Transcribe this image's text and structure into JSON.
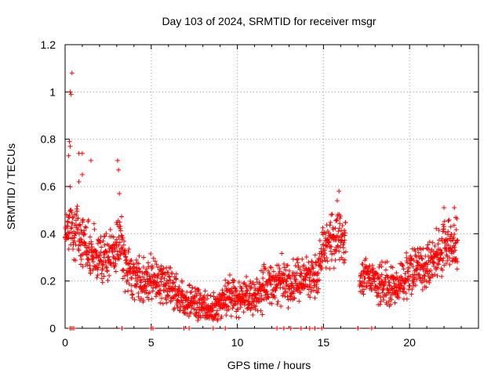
{
  "chart_data": {
    "type": "scatter",
    "title": "Day 103 of 2024, SRMTID for receiver msgr",
    "xlabel": "GPS time / hours",
    "ylabel": "SRMTID / TECUs",
    "xlim": [
      0,
      24
    ],
    "ylim": [
      0,
      1.2
    ],
    "xticks": [
      0,
      5,
      10,
      15,
      20
    ],
    "xtick_labels": [
      "0",
      "5",
      "10",
      "15",
      "20"
    ],
    "yticks": [
      0,
      0.2,
      0.4,
      0.6,
      0.8,
      1.0,
      1.2
    ],
    "ytick_labels": [
      "0",
      "0.2",
      "0.4",
      "0.6",
      "0.8",
      "1",
      "1.2"
    ],
    "grid": true,
    "marker": "+",
    "color": "#ff0000",
    "series": [
      {
        "name": "SRMTID",
        "profile_x": [
          0,
          0.3,
          0.8,
          1.5,
          2.2,
          2.8,
          3.2,
          3.5,
          4.0,
          4.5,
          5.0,
          5.5,
          6.0,
          6.5,
          7.0,
          7.5,
          8.0,
          8.5,
          9.0,
          9.5,
          10.0,
          10.5,
          11.0,
          11.5,
          12.0,
          12.5,
          13.0,
          13.5,
          14.0,
          14.5,
          15.0,
          15.5,
          16.0,
          16.3,
          17.0,
          17.5,
          18.0,
          18.5,
          19.0,
          19.5,
          20.0,
          20.5,
          21.0,
          21.5,
          22.0,
          22.5,
          22.8
        ],
        "profile_y": [
          0.42,
          0.45,
          0.4,
          0.33,
          0.3,
          0.32,
          0.38,
          0.26,
          0.22,
          0.2,
          0.22,
          0.2,
          0.18,
          0.15,
          0.12,
          0.11,
          0.09,
          0.07,
          0.1,
          0.15,
          0.13,
          0.12,
          0.14,
          0.17,
          0.19,
          0.2,
          0.18,
          0.2,
          0.21,
          0.22,
          0.34,
          0.38,
          0.4,
          0.35,
          0.2,
          0.24,
          0.2,
          0.18,
          0.17,
          0.2,
          0.24,
          0.26,
          0.27,
          0.3,
          0.34,
          0.36,
          0.35
        ],
        "spread": 0.06,
        "outliers": [
          {
            "x": 0.4,
            "y": 1.08
          },
          {
            "x": 0.3,
            "y": 1.0
          },
          {
            "x": 0.35,
            "y": 0.99
          },
          {
            "x": 0.25,
            "y": 0.79
          },
          {
            "x": 0.3,
            "y": 0.77
          },
          {
            "x": 0.2,
            "y": 0.73
          },
          {
            "x": 0.8,
            "y": 0.74
          },
          {
            "x": 1.0,
            "y": 0.74
          },
          {
            "x": 0.8,
            "y": 0.62
          },
          {
            "x": 1.0,
            "y": 0.65
          },
          {
            "x": 1.5,
            "y": 0.71
          },
          {
            "x": 3.05,
            "y": 0.71
          },
          {
            "x": 3.1,
            "y": 0.67
          },
          {
            "x": 3.15,
            "y": 0.57
          },
          {
            "x": 15.9,
            "y": 0.58
          },
          {
            "x": 15.8,
            "y": 0.54
          },
          {
            "x": 22.0,
            "y": 0.51
          },
          {
            "x": 22.6,
            "y": 0.51
          }
        ],
        "zero_points_x": [
          0.3,
          0.4,
          0.5,
          3.3,
          5.0,
          5.1,
          6.9,
          7.2,
          8.6,
          9.3,
          12.3,
          12.7,
          13.1,
          13.7,
          14.2,
          14.5,
          14.9,
          17.0,
          17.8
        ]
      }
    ]
  }
}
